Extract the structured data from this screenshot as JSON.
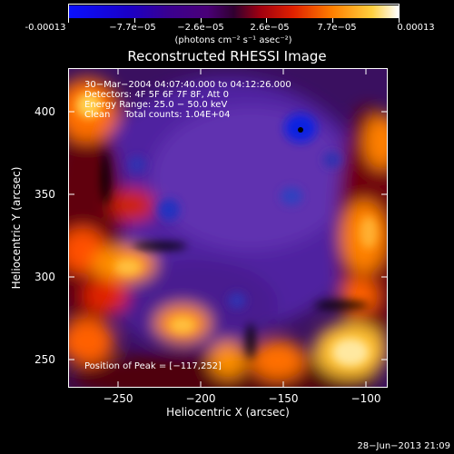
{
  "colorbar": {
    "tick_labels": [
      "-0.00013",
      "−7.7e−05",
      "−2.6e−05",
      "2.6e−05",
      "7.7e−05",
      "0.00013"
    ],
    "unit_label": "(photons cm⁻² s⁻¹ asec⁻²)",
    "colors": [
      "#0000ff",
      "#2a00aa",
      "#4b0082",
      "#5a0070",
      "#b00020",
      "#ff3000",
      "#ff9000",
      "#ffd040",
      "#ffffff"
    ]
  },
  "image": {
    "title": "Reconstructed RHESSI Image",
    "info_line1": "30−Mar−2004 04:07:40.000 to 04:12:26.000",
    "info_line2": "Detectors: 4F 5F 6F 7F 8F, Att 0",
    "info_line3": "Energy Range: 25.0 − 50.0 keV",
    "info_line4": "Clean     Total counts: 1.04E+04",
    "peak_label": "Position of Peak = [−117,252]"
  },
  "axes": {
    "xlabel": "Heliocentric X (arcsec)",
    "ylabel": "Heliocentric Y (arcsec)",
    "xticks": [
      "−250",
      "−200",
      "−150",
      "−100"
    ],
    "yticks": [
      "400",
      "350",
      "300",
      "250"
    ],
    "xrange": [
      -280,
      -88
    ],
    "yrange": [
      232,
      424
    ]
  },
  "footer": {
    "datestamp": "28−Jun−2013 21:09"
  }
}
